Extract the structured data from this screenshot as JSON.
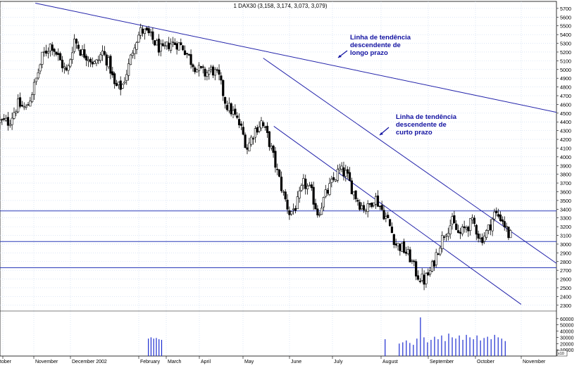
{
  "chart_data": {
    "type": "candlestick",
    "title": "1 DAX30 (3,158, 3,174, 3,073, 3,079)",
    "instrument": "DAX30",
    "last_bar": {
      "open": 3158,
      "high": 3174,
      "low": 3073,
      "close": 3079
    },
    "price_axis": {
      "ylim": [
        2250,
        5780
      ],
      "tick_labels": [
        "5700",
        "5600",
        "5500",
        "5400",
        "5300",
        "5200",
        "5100",
        "5000",
        "4900",
        "4800",
        "4700",
        "4600",
        "4500",
        "4400",
        "4300",
        "4200",
        "4100",
        "4000",
        "3900",
        "3800",
        "3700",
        "3600",
        "3500",
        "3400",
        "3300",
        "3200",
        "3100",
        "3000",
        "2900",
        "2800",
        "2700",
        "2600",
        "2500",
        "2400",
        "2300"
      ]
    },
    "volume_axis": {
      "tick_labels": [
        "60000",
        "50000",
        "40000",
        "30000",
        "20000",
        "10000"
      ],
      "unit_label": "x10"
    },
    "x_axis": {
      "months": [
        "tober",
        "November",
        "December 2002",
        "February",
        "March",
        "April",
        "May",
        "June",
        "July",
        "August",
        "September",
        "October",
        "November"
      ]
    },
    "grid": true,
    "price_path": [
      {
        "t": 0.5,
        "p": 4400
      },
      {
        "t": 1.0,
        "p": 4600
      },
      {
        "t": 1.5,
        "p": 4550
      },
      {
        "t": 2.0,
        "p": 4850
      },
      {
        "t": 2.4,
        "p": 5150
      },
      {
        "t": 2.9,
        "p": 5300
      },
      {
        "t": 3.4,
        "p": 5100
      },
      {
        "t": 3.8,
        "p": 4950
      },
      {
        "t": 4.2,
        "p": 5350
      },
      {
        "t": 4.6,
        "p": 5200
      },
      {
        "t": 5.0,
        "p": 5150
      },
      {
        "t": 5.4,
        "p": 5050
      },
      {
        "t": 5.8,
        "p": 5200
      },
      {
        "t": 6.2,
        "p": 5050
      },
      {
        "t": 6.5,
        "p": 4800
      },
      {
        "t": 6.9,
        "p": 4800
      },
      {
        "t": 7.3,
        "p": 5050
      },
      {
        "t": 7.6,
        "p": 5300
      },
      {
        "t": 8.0,
        "p": 5450
      },
      {
        "t": 8.4,
        "p": 5400
      },
      {
        "t": 8.8,
        "p": 5300
      },
      {
        "t": 9.2,
        "p": 5200
      },
      {
        "t": 9.6,
        "p": 5300
      },
      {
        "t": 10.0,
        "p": 5300
      },
      {
        "t": 10.4,
        "p": 5250
      },
      {
        "t": 10.8,
        "p": 5100
      },
      {
        "t": 11.2,
        "p": 5000
      },
      {
        "t": 11.6,
        "p": 4950
      },
      {
        "t": 12.0,
        "p": 5000
      },
      {
        "t": 12.4,
        "p": 4900
      },
      {
        "t": 12.8,
        "p": 4600
      },
      {
        "t": 13.2,
        "p": 4500
      },
      {
        "t": 13.6,
        "p": 4350
      },
      {
        "t": 14.0,
        "p": 4100
      },
      {
        "t": 14.4,
        "p": 4300
      },
      {
        "t": 14.8,
        "p": 4400
      },
      {
        "t": 15.2,
        "p": 4200
      },
      {
        "t": 15.6,
        "p": 3900
      },
      {
        "t": 16.0,
        "p": 3600
      },
      {
        "t": 16.4,
        "p": 3350
      },
      {
        "t": 16.8,
        "p": 3450
      },
      {
        "t": 17.2,
        "p": 3700
      },
      {
        "t": 17.6,
        "p": 3600
      },
      {
        "t": 18.0,
        "p": 3350
      },
      {
        "t": 18.4,
        "p": 3550
      },
      {
        "t": 18.8,
        "p": 3700
      },
      {
        "t": 19.2,
        "p": 3850
      },
      {
        "t": 19.6,
        "p": 3800
      },
      {
        "t": 20.0,
        "p": 3600
      },
      {
        "t": 20.4,
        "p": 3450
      },
      {
        "t": 20.8,
        "p": 3400
      },
      {
        "t": 21.2,
        "p": 3550
      },
      {
        "t": 21.6,
        "p": 3400
      },
      {
        "t": 22.0,
        "p": 3250
      },
      {
        "t": 22.4,
        "p": 3000
      },
      {
        "t": 22.8,
        "p": 2950
      },
      {
        "t": 23.2,
        "p": 2850
      },
      {
        "t": 23.6,
        "p": 2650
      },
      {
        "t": 24.0,
        "p": 2580
      },
      {
        "t": 24.4,
        "p": 2700
      },
      {
        "t": 24.8,
        "p": 2950
      },
      {
        "t": 25.2,
        "p": 3150
      },
      {
        "t": 25.6,
        "p": 3250
      },
      {
        "t": 26.0,
        "p": 3100
      },
      {
        "t": 26.4,
        "p": 3200
      },
      {
        "t": 26.8,
        "p": 3250
      },
      {
        "t": 27.2,
        "p": 3050
      },
      {
        "t": 27.6,
        "p": 3150
      },
      {
        "t": 28.0,
        "p": 3350
      },
      {
        "t": 28.4,
        "p": 3300
      },
      {
        "t": 28.8,
        "p": 3100
      }
    ],
    "volume_bars": [
      {
        "t": 8.4,
        "v": 28000
      },
      {
        "t": 8.55,
        "v": 30000
      },
      {
        "t": 8.7,
        "v": 28000
      },
      {
        "t": 8.85,
        "v": 29000
      },
      {
        "t": 9.0,
        "v": 27000
      },
      {
        "t": 9.15,
        "v": 26000
      },
      {
        "t": 21.8,
        "v": 27000
      },
      {
        "t": 22.6,
        "v": 20000
      },
      {
        "t": 22.8,
        "v": 22000
      },
      {
        "t": 23.0,
        "v": 25000
      },
      {
        "t": 23.2,
        "v": 21000
      },
      {
        "t": 23.4,
        "v": 18000
      },
      {
        "t": 23.6,
        "v": 28000
      },
      {
        "t": 23.8,
        "v": 62000
      },
      {
        "t": 24.0,
        "v": 30000
      },
      {
        "t": 24.2,
        "v": 22000
      },
      {
        "t": 24.4,
        "v": 26000
      },
      {
        "t": 24.6,
        "v": 31000
      },
      {
        "t": 24.8,
        "v": 27000
      },
      {
        "t": 25.0,
        "v": 33000
      },
      {
        "t": 25.2,
        "v": 24000
      },
      {
        "t": 25.4,
        "v": 36000
      },
      {
        "t": 25.6,
        "v": 30000
      },
      {
        "t": 25.8,
        "v": 28000
      },
      {
        "t": 26.0,
        "v": 33000
      },
      {
        "t": 26.2,
        "v": 26000
      },
      {
        "t": 26.4,
        "v": 34000
      },
      {
        "t": 26.6,
        "v": 30000
      },
      {
        "t": 26.8,
        "v": 27000
      },
      {
        "t": 27.0,
        "v": 33000
      },
      {
        "t": 27.2,
        "v": 25000
      },
      {
        "t": 27.4,
        "v": 29000
      },
      {
        "t": 27.6,
        "v": 31000
      },
      {
        "t": 27.8,
        "v": 27000
      },
      {
        "t": 28.0,
        "v": 34000
      },
      {
        "t": 28.2,
        "v": 30000
      },
      {
        "t": 28.4,
        "v": 28000
      },
      {
        "t": 28.6,
        "v": 24000
      }
    ],
    "horizontal_levels": [
      3380,
      3030,
      2730
    ],
    "trendlines": [
      {
        "name": "long-term",
        "from": {
          "t": 2.0,
          "p": 5760
        },
        "to": {
          "t": 31.5,
          "p": 4510
        }
      },
      {
        "name": "short-term",
        "from": {
          "t": 14.9,
          "p": 5130
        },
        "to": {
          "t": 31.5,
          "p": 2780
        }
      },
      {
        "name": "channel-lower",
        "from": {
          "t": 15.5,
          "p": 4350
        },
        "to": {
          "t": 29.5,
          "p": 2310
        }
      }
    ],
    "annotations": [
      {
        "name": "long-term",
        "lines": [
          "Linha de tendência",
          "descendente de",
          "longo prazo"
        ]
      },
      {
        "name": "short-term",
        "lines": [
          "Linha de tendência",
          "descendente de",
          "curto prazo"
        ]
      }
    ],
    "colors": {
      "candle": "#000000",
      "grid": "#c8d8f0",
      "trendline": "#2222aa",
      "annotation": "#1010a0",
      "volume": "#1a2bd0",
      "level": "#2a3ab8"
    }
  }
}
